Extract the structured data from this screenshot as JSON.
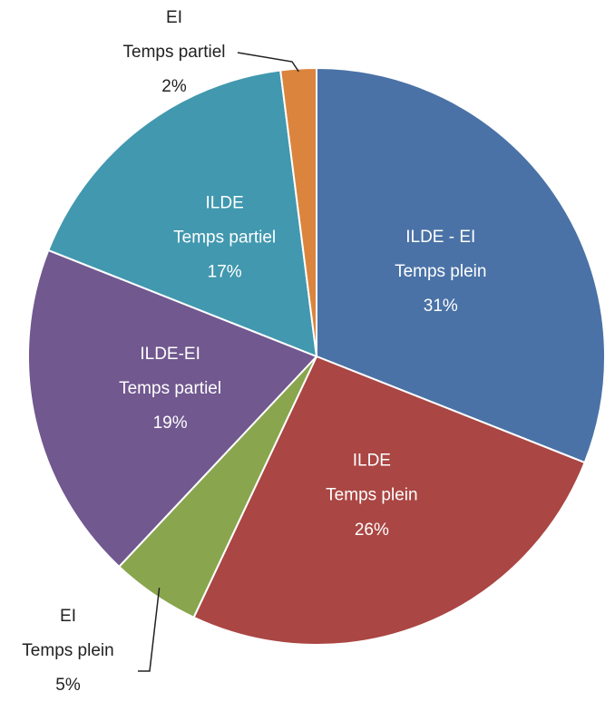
{
  "chart_data": {
    "type": "pie",
    "categories": [
      "ILDE - EI\nTemps plein",
      "ILDE\nTemps plein",
      "EI\nTemps plein",
      "ILDE-EI\nTemps partiel",
      "ILDE\nTemps partiel",
      "EI\nTemps partiel"
    ],
    "values": [
      31,
      26,
      5,
      19,
      17,
      2
    ],
    "value_labels": [
      "31%",
      "26%",
      "5%",
      "19%",
      "17%",
      "2%"
    ],
    "colors": [
      "#4a72a6",
      "#aa4643",
      "#89a54e",
      "#71588f",
      "#4198af",
      "#db843d"
    ]
  }
}
